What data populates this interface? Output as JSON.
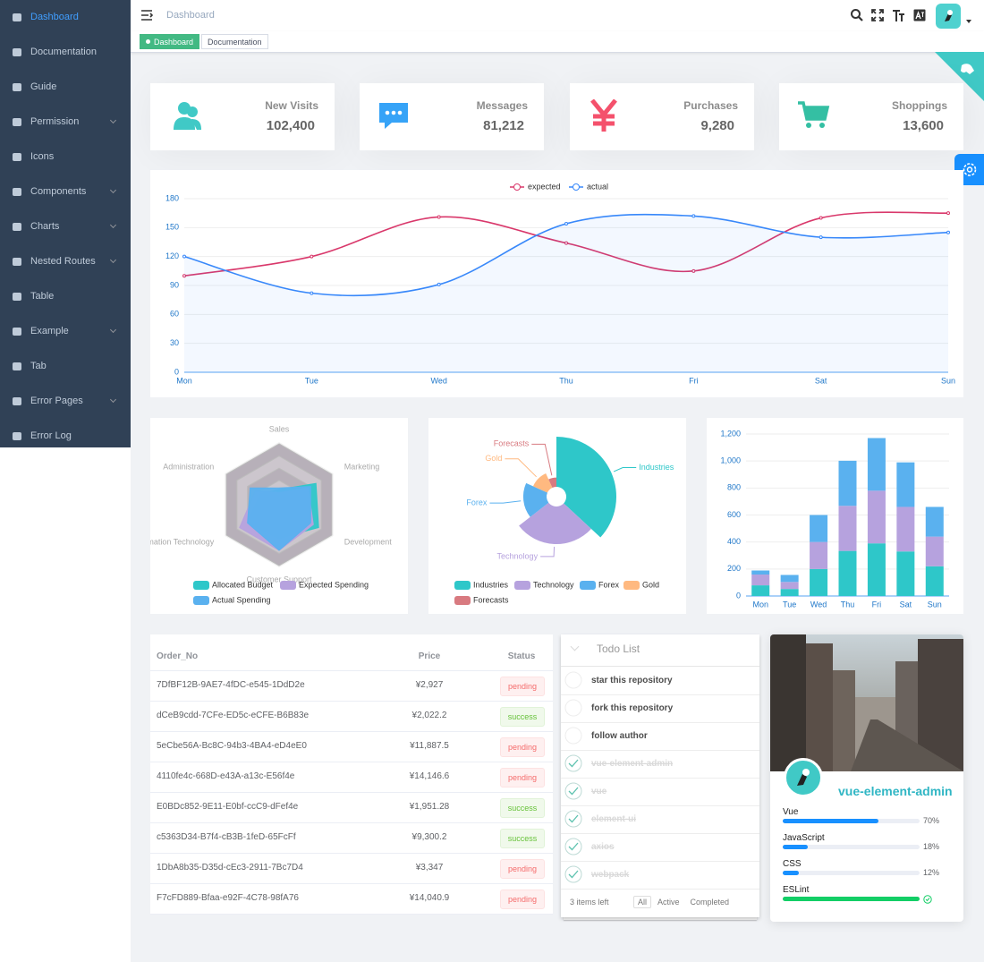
{
  "sidebar": {
    "items": [
      {
        "label": "Dashboard",
        "active": true
      },
      {
        "label": "Documentation"
      },
      {
        "label": "Guide"
      },
      {
        "label": "Permission",
        "submenu": true
      },
      {
        "label": "Icons"
      },
      {
        "label": "Components",
        "submenu": true
      },
      {
        "label": "Charts",
        "submenu": true
      },
      {
        "label": "Nested Routes",
        "submenu": true
      },
      {
        "label": "Table"
      },
      {
        "label": "Example",
        "submenu": true
      },
      {
        "label": "Tab"
      },
      {
        "label": "Error Pages",
        "submenu": true
      },
      {
        "label": "Error Log"
      }
    ]
  },
  "navbar": {
    "breadcrumb": "Dashboard"
  },
  "tags": [
    {
      "label": "Dashboard",
      "active": true
    },
    {
      "label": "Documentation"
    }
  ],
  "cards": [
    {
      "title": "New Visits",
      "value": "102,400",
      "color": "#40c9c6"
    },
    {
      "title": "Messages",
      "value": "81,212",
      "color": "#36a3f7"
    },
    {
      "title": "Purchases",
      "value": "9,280",
      "color": "#f4516c"
    },
    {
      "title": "Shoppings",
      "value": "13,600",
      "color": "#34bfa3"
    }
  ],
  "chart_data": [
    {
      "type": "line",
      "categories": [
        "Mon",
        "Tue",
        "Wed",
        "Thu",
        "Fri",
        "Sat",
        "Sun"
      ],
      "series": [
        {
          "name": "expected",
          "color": "#d9386b",
          "values": [
            100,
            120,
            161,
            134,
            105,
            160,
            165
          ]
        },
        {
          "name": "actual",
          "color": "#3888fa",
          "area": true,
          "values": [
            120,
            82,
            91,
            154,
            162,
            140,
            145
          ]
        }
      ],
      "ylim": [
        0,
        180
      ],
      "yticks": [
        0,
        30,
        60,
        90,
        120,
        150,
        180
      ],
      "grid": true,
      "legend": "top"
    },
    {
      "type": "radar",
      "indicators": [
        "Sales",
        "Administration",
        "Information Technology",
        "Customer Support",
        "Development",
        "Marketing"
      ],
      "rlim": [
        0,
        20000
      ],
      "series": [
        {
          "name": "Allocated Budget",
          "color": "#2ec7c9",
          "values": [
            5000,
            7000,
            12000,
            11000,
            15000,
            14000
          ]
        },
        {
          "name": "Expected Spending",
          "color": "#b6a2de",
          "values": [
            4000,
            9000,
            15000,
            15000,
            13000,
            11000
          ]
        },
        {
          "name": "Actual Spending",
          "color": "#5ab1ef",
          "values": [
            5500,
            11000,
            12000,
            15000,
            12000,
            12000
          ]
        }
      ],
      "legend": "bottom"
    },
    {
      "type": "pie",
      "rose": true,
      "categories": [
        "Industries",
        "Technology",
        "Forex",
        "Gold",
        "Forecasts"
      ],
      "values": [
        320,
        240,
        149,
        100,
        59
      ],
      "colors": [
        "#2ec7c9",
        "#b6a2de",
        "#5ab1ef",
        "#ffb980",
        "#d87a80"
      ],
      "legend": "bottom"
    },
    {
      "type": "bar",
      "stacked": true,
      "categories": [
        "Mon",
        "Tue",
        "Wed",
        "Thu",
        "Fri",
        "Sat",
        "Sun"
      ],
      "series": [
        {
          "color": "#2ec7c9",
          "values": [
            79,
            52,
            200,
            334,
            390,
            330,
            220
          ]
        },
        {
          "color": "#b6a2de",
          "values": [
            80,
            52,
            200,
            334,
            390,
            330,
            220
          ]
        },
        {
          "color": "#5ab1ef",
          "values": [
            30,
            52,
            200,
            334,
            390,
            330,
            220
          ]
        }
      ],
      "ylim": [
        0,
        1200
      ],
      "yticks": [
        0,
        200,
        400,
        600,
        800,
        {
          "value": 1000,
          "label": "1,000"
        },
        {
          "value": 1200,
          "label": "1,200"
        }
      ],
      "grid": true
    }
  ],
  "table": {
    "columns": [
      "Order_No",
      "Price",
      "Status"
    ],
    "rows": [
      [
        "7DfBF12B-9AE7-4fDC-e545-1DdD2e",
        "¥2,927",
        "pending"
      ],
      [
        "dCeB9cdd-7CFe-ED5c-eCFE-B6B83e",
        "¥2,022.2",
        "success"
      ],
      [
        "5eCbe56A-Bc8C-94b3-4BA4-eD4eE0",
        "¥11,887.5",
        "pending"
      ],
      [
        "4110fe4c-668D-e43A-a13c-E56f4e",
        "¥14,146.6",
        "pending"
      ],
      [
        "E0BDc852-9E11-E0bf-ccC9-dFef4e",
        "¥1,951.28",
        "success"
      ],
      [
        "c5363D34-B7f4-cB3B-1feD-65FcFf",
        "¥9,300.2",
        "success"
      ],
      [
        "1DbA8b35-D35d-cEc3-2911-7Bc7D4",
        "¥3,347",
        "pending"
      ],
      [
        "F7cFD889-Bfaa-e92F-4C78-98fA76",
        "¥14,040.9",
        "pending"
      ]
    ]
  },
  "todo": {
    "title": "Todo List",
    "items": [
      {
        "text": "star this repository",
        "done": false
      },
      {
        "text": "fork this repository",
        "done": false
      },
      {
        "text": "follow author",
        "done": false
      },
      {
        "text": "vue-element-admin",
        "done": true
      },
      {
        "text": "vue",
        "done": true
      },
      {
        "text": "element-ui",
        "done": true
      },
      {
        "text": "axios",
        "done": true
      },
      {
        "text": "webpack",
        "done": true
      }
    ],
    "footer": "3 items left",
    "filters": [
      {
        "label": "All",
        "selected": true
      },
      {
        "label": "Active"
      },
      {
        "label": "Completed"
      }
    ]
  },
  "profile": {
    "name": "vue-element-admin",
    "skills": [
      {
        "name": "Vue",
        "percentage": 70,
        "label": "70%",
        "color": "#1890ff"
      },
      {
        "name": "JavaScript",
        "percentage": 18,
        "label": "18%",
        "color": "#1890ff"
      },
      {
        "name": "CSS",
        "percentage": 12,
        "label": "12%",
        "color": "#1890ff"
      },
      {
        "name": "ESLint",
        "percentage": 100,
        "status": "success",
        "color": "#13ce66"
      }
    ]
  }
}
